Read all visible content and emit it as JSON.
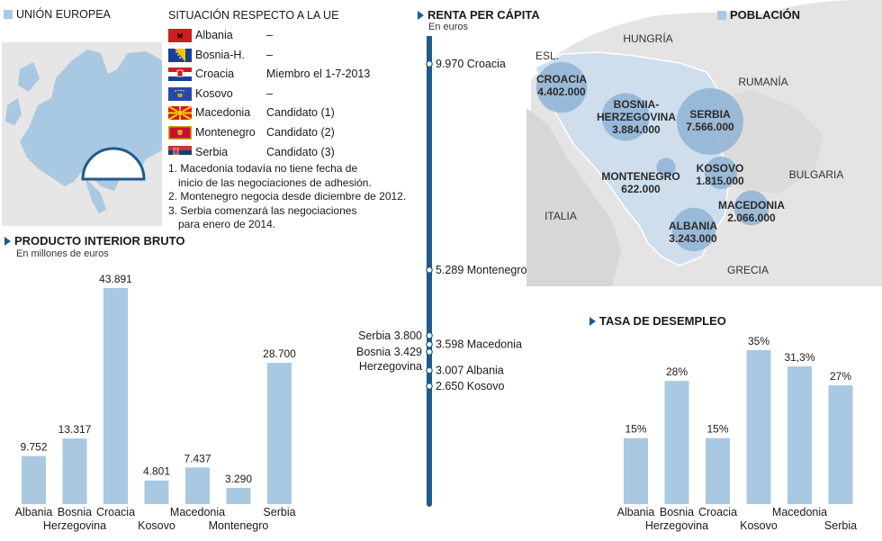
{
  "eu_legend": {
    "label": "UNIÓN EUROPEA"
  },
  "status": {
    "title": "SITUACIÓN RESPECTO A LA UE",
    "rows": [
      {
        "country": "Albania",
        "status": "–",
        "flag": "albania-flag-icon"
      },
      {
        "country": "Bosnia-H.",
        "status": "–",
        "flag": "bosnia-flag-icon"
      },
      {
        "country": "Croacia",
        "status": "Miembro el 1-7-2013",
        "flag": "croatia-flag-icon"
      },
      {
        "country": "Kosovo",
        "status": "–",
        "flag": "kosovo-flag-icon"
      },
      {
        "country": "Macedonia",
        "status": "Candidato (1)",
        "flag": "macedonia-flag-icon"
      },
      {
        "country": "Montenegro",
        "status": "Candidato (2)",
        "flag": "montenegro-flag-icon"
      },
      {
        "country": "Serbia",
        "status": "Candidato (3)",
        "flag": "serbia-flag-icon"
      }
    ],
    "notes": [
      "1. Macedonia todavía no tiene fecha de",
      "inicio de las negociaciones de adhesión.",
      "2. Montenegro negocia desde diciembre de 2012.",
      "3. Serbia comenzará las negociaciones",
      "para enero de 2014."
    ]
  },
  "colors": {
    "bar": "#a9c8e2",
    "accent": "#1f5b8c",
    "bubble": "#8fb3d4",
    "land": "#e4e4e4"
  },
  "chart_data": [
    {
      "type": "bar",
      "title": "PRODUCTO INTERIOR BRUTO",
      "subtitle": "En  millones de euros",
      "categories": [
        "Albania",
        "Bosnia Herzegovina",
        "Croacia",
        "Kosovo",
        "Macedonia",
        "Montenegro",
        "Serbia"
      ],
      "category_lines": [
        [
          "Albania"
        ],
        [
          "Bosnia",
          "Herzegovina"
        ],
        [
          "Croacia"
        ],
        [
          "Kosovo"
        ],
        [
          "Macedonia"
        ],
        [
          "Montenegro"
        ],
        [
          "Serbia"
        ]
      ],
      "values": [
        9752,
        13317,
        43891,
        4801,
        7437,
        3290,
        28700
      ],
      "value_labels": [
        "9.752",
        "13.317",
        "43.891",
        "4.801",
        "7.437",
        "3.290",
        "28.700"
      ],
      "ylim": [
        0,
        43891
      ]
    },
    {
      "type": "scatter",
      "title": "RENTA PER CÁPITA",
      "subtitle": "En euros",
      "points": [
        {
          "country": "Croacia",
          "value": 9970,
          "label": "9.970",
          "side": "right"
        },
        {
          "country": "Montenegro",
          "value": 5289,
          "label": "5.289",
          "side": "right"
        },
        {
          "country": "Serbia",
          "value": 3800,
          "label": "3.800",
          "side": "left"
        },
        {
          "country": "Macedonia",
          "value": 3598,
          "label": "3.598",
          "side": "right"
        },
        {
          "country": "Bosnia Herzegovina",
          "value": 3429,
          "label": "3.429",
          "side": "left"
        },
        {
          "country": "Albania",
          "value": 3007,
          "label": "3.007",
          "side": "right"
        },
        {
          "country": "Kosovo",
          "value": 2650,
          "label": "2.650",
          "side": "right"
        }
      ],
      "left_labels": [
        "Serbia 3.800",
        "Bosnia 3.429",
        "Herzegovina"
      ]
    },
    {
      "type": "bar",
      "title": "TASA DE DESEMPLEO",
      "categories": [
        "Albania",
        "Bosnia Herzegovina",
        "Croacia",
        "Kosovo",
        "Macedonia",
        "Serbia"
      ],
      "category_lines": [
        [
          "Albania"
        ],
        [
          "Bosnia",
          "Herzegovina"
        ],
        [
          "Croacia"
        ],
        [
          "Kosovo"
        ],
        [
          "Macedonia"
        ],
        [
          "Serbia"
        ]
      ],
      "values": [
        15,
        28,
        15,
        35,
        31.3,
        27
      ],
      "value_labels": [
        "15%",
        "28%",
        "15%",
        "35%",
        "31,3%",
        "27%"
      ],
      "ylim": [
        0,
        35
      ]
    }
  ],
  "population_map": {
    "title": "POBLACIÓN",
    "regions": [
      "HUNGRÍA",
      "ESL.",
      "RUMANÍA",
      "BULGARIA",
      "ITALIA",
      "GRECIA"
    ],
    "bubbles": [
      {
        "name": "CROACIA",
        "value": 4402000,
        "label": "4.402.000"
      },
      {
        "name": "BOSNIA-\nHERZEGOVINA",
        "value": 3884000,
        "label": "3.884.000"
      },
      {
        "name": "SERBIA",
        "value": 7566000,
        "label": "7.566.000"
      },
      {
        "name": "MONTENEGRO",
        "value": 622000,
        "label": "622.000"
      },
      {
        "name": "KOSOVO",
        "value": 1815000,
        "label": "1.815.000"
      },
      {
        "name": "MACEDONIA",
        "value": 2066000,
        "label": "2.066.000"
      },
      {
        "name": "ALBANIA",
        "value": 3243000,
        "label": "3.243.000"
      }
    ]
  }
}
